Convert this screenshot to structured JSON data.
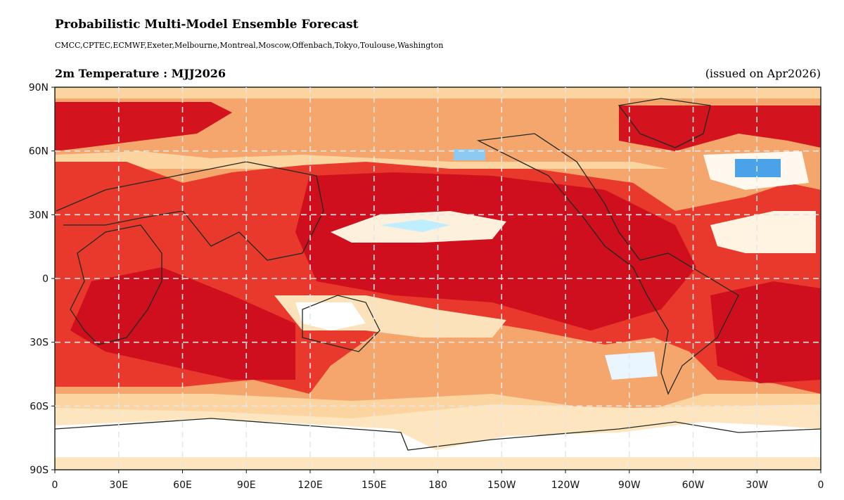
{
  "header": {
    "title": "Probabilistic Multi-Model Ensemble Forecast",
    "models": "CMCC,CPTEC,ECMWF,Exeter,Melbourne,Montreal,Moscow,Offenbach,Tokyo,Toulouse,Washington"
  },
  "panel": {
    "title": "2m Temperature : MJJ2026",
    "issued": "(issued on Apr2026)"
  },
  "axes": {
    "lat_labels": [
      "90N",
      "60N",
      "30N",
      "0",
      "30S",
      "60S",
      "90S"
    ],
    "lon_labels": [
      "0",
      "30E",
      "60E",
      "90E",
      "120E",
      "150E",
      "180",
      "150W",
      "120W",
      "90W",
      "60W",
      "30W",
      "0"
    ]
  }
}
